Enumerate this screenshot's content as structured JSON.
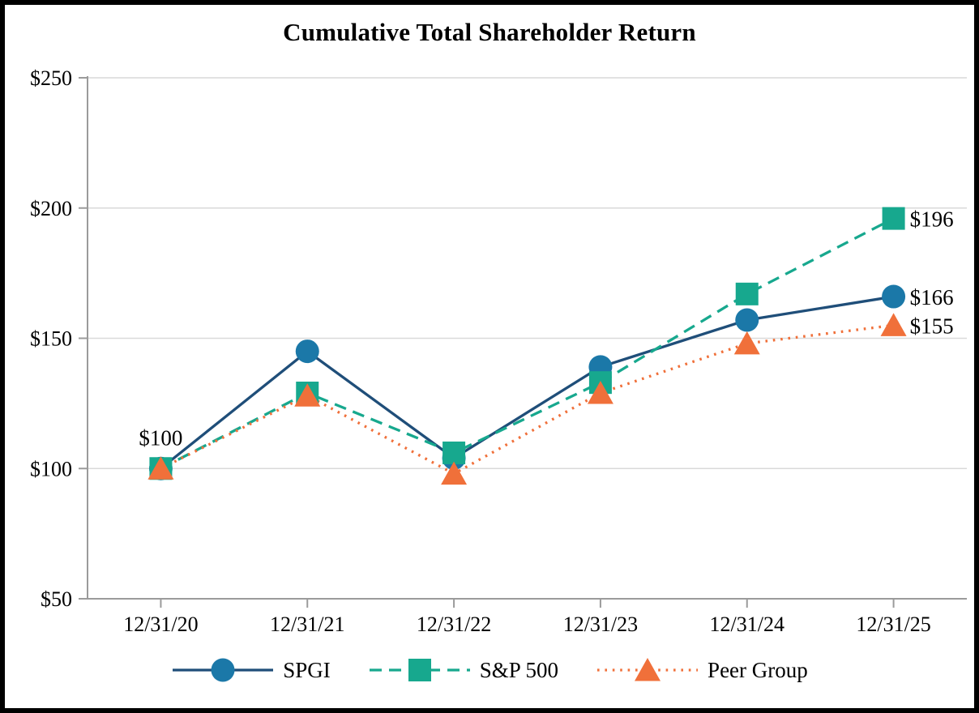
{
  "chart_data": {
    "type": "line",
    "title": "Cumulative Total Shareholder Return",
    "categories": [
      "12/31/20",
      "12/31/21",
      "12/31/22",
      "12/31/23",
      "12/31/24",
      "12/31/25"
    ],
    "series": [
      {
        "name": "SPGI",
        "values": [
          100,
          145,
          104,
          139,
          157,
          166
        ],
        "line_color": "#1F4E79",
        "marker_color": "#1B78A8",
        "marker": "circle",
        "line_style": "solid"
      },
      {
        "name": "S&P 500",
        "values": [
          100,
          129,
          106,
          133,
          167,
          196
        ],
        "line_color": "#17A88E",
        "marker_color": "#17A88E",
        "marker": "square",
        "line_style": "dashed"
      },
      {
        "name": "Peer Group",
        "values": [
          100,
          128,
          98,
          129,
          148,
          155
        ],
        "line_color": "#F0703A",
        "marker_color": "#F0703A",
        "marker": "triangle",
        "line_style": "dotted"
      }
    ],
    "ylim": [
      50,
      250
    ],
    "yticks": [
      250,
      200,
      150,
      100,
      50
    ],
    "ytick_prefix": "$",
    "grid": true,
    "gridline_color": "#D9D9D9",
    "axis_color": "#9B9B9B",
    "legend_position": "bottom",
    "annotations": [
      {
        "text": "$100",
        "series_index": 0,
        "point_index": 0,
        "placement": "above"
      },
      {
        "text": "$196",
        "series_index": 1,
        "point_index": 5,
        "placement": "right"
      },
      {
        "text": "$166",
        "series_index": 0,
        "point_index": 5,
        "placement": "right"
      },
      {
        "text": "$155",
        "series_index": 2,
        "point_index": 5,
        "placement": "right"
      }
    ]
  }
}
